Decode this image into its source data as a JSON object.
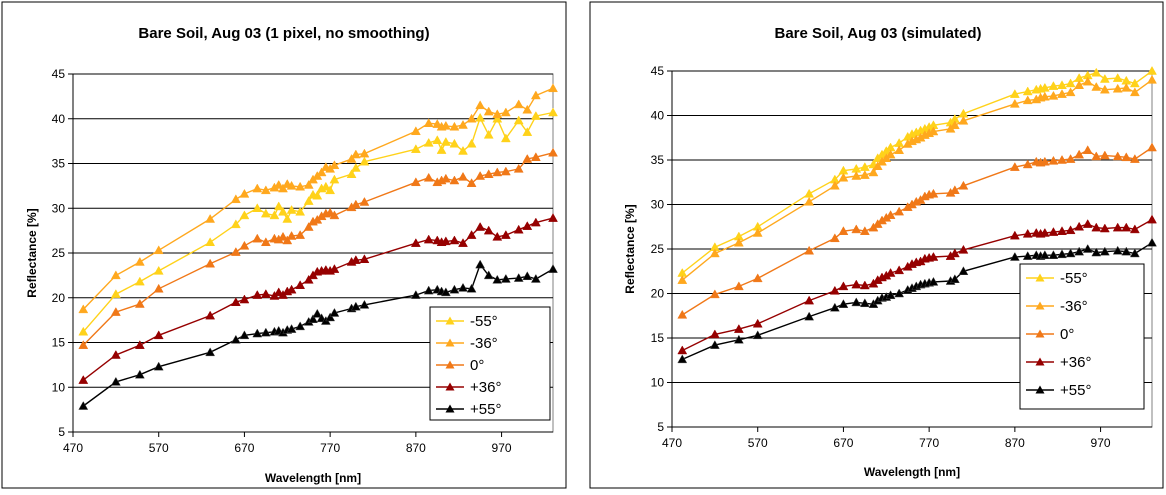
{
  "chart_data": [
    {
      "type": "line",
      "title": "Bare Soil, Aug 03 (1 pixel, no smoothing)",
      "xlabel": "Wavelength [nm]",
      "ylabel": "Reflectance [%]",
      "xlim": [
        470,
        1030
      ],
      "ylim": [
        5,
        45
      ],
      "xticks": [
        470,
        570,
        670,
        770,
        870,
        970
      ],
      "yticks": [
        5,
        10,
        15,
        20,
        25,
        30,
        35,
        40,
        45
      ],
      "grid": true,
      "legend_position": "bottom-right",
      "x": [
        482,
        520,
        548,
        570,
        630,
        660,
        670,
        685,
        695,
        705,
        710,
        715,
        720,
        725,
        735,
        745,
        750,
        755,
        760,
        765,
        770,
        775,
        795,
        800,
        810,
        870,
        885,
        895,
        900,
        905,
        915,
        925,
        935,
        945,
        955,
        965,
        975,
        990,
        1000,
        1010,
        1030
      ],
      "series": [
        {
          "name": "-55°",
          "color": "#FFD21A",
          "values": [
            16.2,
            20.4,
            21.8,
            23.0,
            26.2,
            28.2,
            29.2,
            30.0,
            29.4,
            29.2,
            30.2,
            29.6,
            28.8,
            29.8,
            29.6,
            30.8,
            31.5,
            31.4,
            32.2,
            32.4,
            32.0,
            33.2,
            33.8,
            34.5,
            35.2,
            36.6,
            37.3,
            37.6,
            36.5,
            37.4,
            37.2,
            36.4,
            37.2,
            40.1,
            38.2,
            40.0,
            37.8,
            39.8,
            38.5,
            40.3,
            40.7
          ]
        },
        {
          "name": "-36°",
          "color": "#FFA81E",
          "values": [
            18.7,
            22.5,
            24.0,
            25.3,
            28.8,
            31.0,
            31.6,
            32.2,
            32.0,
            32.3,
            32.6,
            32.2,
            32.7,
            32.5,
            32.4,
            32.6,
            33.2,
            33.6,
            34.0,
            34.6,
            34.4,
            34.8,
            35.5,
            36.0,
            36.1,
            38.6,
            39.5,
            39.4,
            39.1,
            39.2,
            39.1,
            39.3,
            40.0,
            41.5,
            40.8,
            40.5,
            40.7,
            41.6,
            41.0,
            42.6,
            43.4
          ]
        },
        {
          "name": "0°",
          "color": "#F07818",
          "values": [
            14.7,
            18.4,
            19.3,
            21.0,
            23.8,
            25.1,
            25.8,
            26.6,
            26.2,
            26.6,
            26.5,
            26.8,
            26.4,
            26.9,
            27.0,
            27.9,
            28.5,
            28.7,
            29.1,
            29.4,
            29.5,
            29.2,
            30.1,
            30.4,
            30.7,
            32.9,
            33.4,
            32.9,
            33.1,
            33.3,
            33.1,
            33.5,
            32.8,
            33.6,
            33.8,
            34.0,
            34.1,
            34.4,
            35.5,
            35.7,
            36.2
          ]
        },
        {
          "name": "+36°",
          "color": "#960000",
          "values": [
            10.8,
            13.6,
            14.7,
            15.8,
            18.0,
            19.5,
            19.8,
            20.3,
            20.4,
            20.2,
            20.6,
            20.3,
            20.7,
            20.9,
            21.4,
            22.0,
            22.5,
            22.9,
            23.0,
            23.1,
            23.0,
            23.2,
            24.0,
            24.2,
            24.3,
            26.1,
            26.5,
            26.4,
            26.2,
            26.3,
            26.4,
            26.1,
            27.0,
            27.9,
            27.5,
            26.8,
            27.0,
            27.6,
            28.0,
            28.4,
            28.9
          ]
        },
        {
          "name": "+55°",
          "color": "#000000",
          "values": [
            7.9,
            10.6,
            11.4,
            12.3,
            13.9,
            15.3,
            15.8,
            16.0,
            16.1,
            16.2,
            16.3,
            16.1,
            16.4,
            16.5,
            16.8,
            17.3,
            17.6,
            18.2,
            17.7,
            17.4,
            17.8,
            18.3,
            18.8,
            19.0,
            19.2,
            20.3,
            20.8,
            20.9,
            20.7,
            20.6,
            20.9,
            21.1,
            21.0,
            23.7,
            22.5,
            22.0,
            22.1,
            22.2,
            22.4,
            22.1,
            23.2
          ]
        }
      ]
    },
    {
      "type": "line",
      "title": "Bare Soil, Aug 03 (simulated)",
      "xlabel": "Wavelength [nm]",
      "ylabel": "Reflectance [%]",
      "xlim": [
        470,
        1030
      ],
      "ylim": [
        5,
        45
      ],
      "xticks": [
        470,
        570,
        670,
        770,
        870,
        970
      ],
      "yticks": [
        5,
        10,
        15,
        20,
        25,
        30,
        35,
        40,
        45
      ],
      "grid": true,
      "legend_position": "bottom-right",
      "x": [
        482,
        520,
        548,
        570,
        630,
        660,
        670,
        685,
        695,
        705,
        710,
        715,
        720,
        725,
        735,
        745,
        750,
        755,
        760,
        765,
        770,
        775,
        795,
        800,
        810,
        870,
        885,
        895,
        900,
        905,
        915,
        925,
        935,
        945,
        955,
        965,
        975,
        990,
        1000,
        1010,
        1030
      ],
      "series": [
        {
          "name": "-55°",
          "color": "#FFD21A",
          "values": [
            22.3,
            25.2,
            26.4,
            27.5,
            31.2,
            32.8,
            33.8,
            34.0,
            34.2,
            34.5,
            35.2,
            35.6,
            36.0,
            36.4,
            36.9,
            37.6,
            37.9,
            38.1,
            38.3,
            38.5,
            38.7,
            38.9,
            39.2,
            39.6,
            40.2,
            42.4,
            42.7,
            42.9,
            43.0,
            43.1,
            43.3,
            43.4,
            43.6,
            44.2,
            44.5,
            44.8,
            44.1,
            44.2,
            43.9,
            43.6,
            45.0
          ]
        },
        {
          "name": "-36°",
          "color": "#FFA81E",
          "values": [
            21.5,
            24.5,
            25.7,
            26.8,
            30.3,
            32.1,
            33.0,
            33.2,
            33.3,
            33.6,
            34.3,
            34.8,
            35.2,
            35.6,
            36.1,
            36.8,
            37.1,
            37.3,
            37.5,
            37.8,
            38.0,
            38.2,
            38.5,
            38.9,
            39.4,
            41.3,
            41.7,
            41.8,
            42.0,
            42.1,
            42.2,
            42.4,
            42.6,
            43.4,
            43.8,
            43.2,
            42.9,
            43.0,
            43.1,
            42.6,
            44.0
          ]
        },
        {
          "name": "0°",
          "color": "#F07818",
          "values": [
            17.6,
            19.9,
            20.8,
            21.7,
            24.8,
            26.2,
            27.0,
            27.2,
            27.0,
            27.4,
            27.8,
            28.2,
            28.5,
            28.8,
            29.2,
            29.7,
            30.0,
            30.3,
            30.5,
            30.9,
            31.1,
            31.2,
            31.3,
            31.6,
            32.1,
            34.2,
            34.5,
            34.8,
            34.7,
            34.8,
            34.9,
            35.0,
            35.1,
            35.6,
            36.1,
            35.4,
            35.5,
            35.4,
            35.3,
            35.1,
            36.4
          ]
        },
        {
          "name": "+36°",
          "color": "#960000",
          "values": [
            13.6,
            15.4,
            16.0,
            16.6,
            19.2,
            20.3,
            20.8,
            21.0,
            20.9,
            21.1,
            21.5,
            21.8,
            22.0,
            22.3,
            22.6,
            23.0,
            23.3,
            23.5,
            23.6,
            23.9,
            24.0,
            24.1,
            24.2,
            24.5,
            24.9,
            26.5,
            26.7,
            26.8,
            26.7,
            26.8,
            26.9,
            27.0,
            27.1,
            27.5,
            27.8,
            27.4,
            27.3,
            27.4,
            27.4,
            27.2,
            28.3
          ]
        },
        {
          "name": "+55°",
          "color": "#000000",
          "values": [
            12.6,
            14.2,
            14.8,
            15.3,
            17.4,
            18.4,
            18.8,
            19.0,
            18.9,
            18.8,
            19.2,
            19.5,
            19.6,
            19.8,
            20.0,
            20.4,
            20.6,
            20.8,
            21.0,
            21.1,
            21.2,
            21.3,
            21.4,
            21.6,
            22.5,
            24.1,
            24.2,
            24.3,
            24.2,
            24.3,
            24.3,
            24.4,
            24.5,
            24.7,
            25.0,
            24.6,
            24.7,
            24.8,
            24.7,
            24.5,
            25.7
          ]
        }
      ]
    }
  ]
}
